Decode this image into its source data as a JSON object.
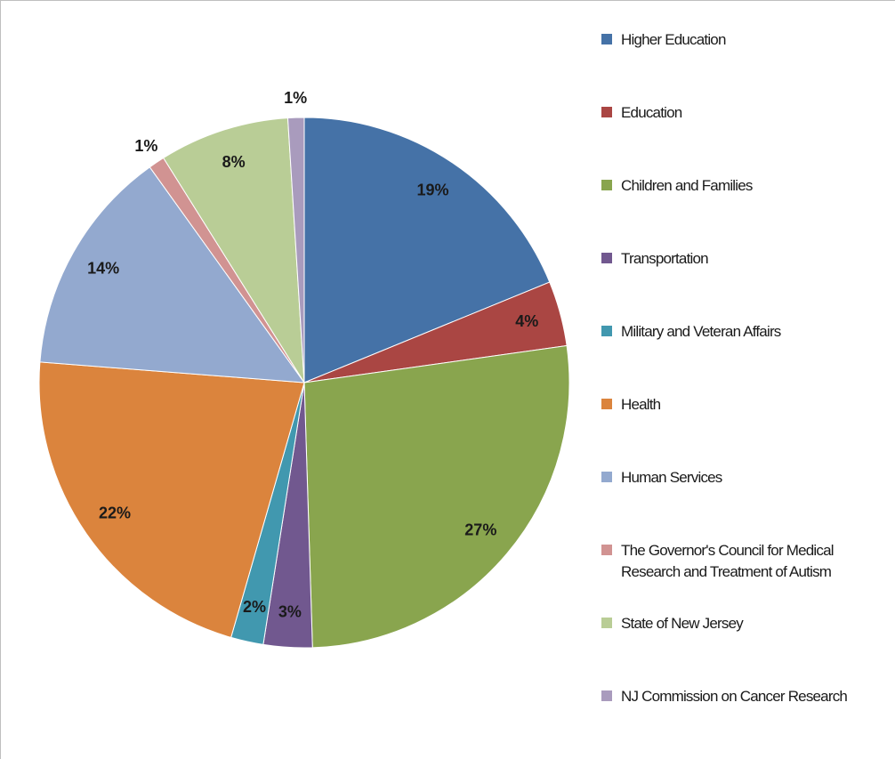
{
  "chart_data": {
    "type": "pie",
    "categories": [
      "Higher Education",
      "Education",
      "Children and Families",
      "Transportation",
      "Military and Veteran Affairs",
      "Health",
      "Human Services",
      "The Governor's Council for Medical Research and Treatment of Autism",
      "State of New Jersey",
      "NJ Commission on Cancer Research"
    ],
    "values": [
      19,
      4,
      27,
      3,
      2,
      22,
      14,
      1,
      8,
      1
    ],
    "value_labels": [
      "19%",
      "4%",
      "27%",
      "3%",
      "2%",
      "22%",
      "14%",
      "1%",
      "8%",
      "1%"
    ],
    "colors": [
      "#4572a7",
      "#aa4643",
      "#89a54e",
      "#71588f",
      "#4198af",
      "#db843d",
      "#93a9cf",
      "#d19392",
      "#b9cd96",
      "#a99bbd"
    ],
    "legend": "right"
  }
}
